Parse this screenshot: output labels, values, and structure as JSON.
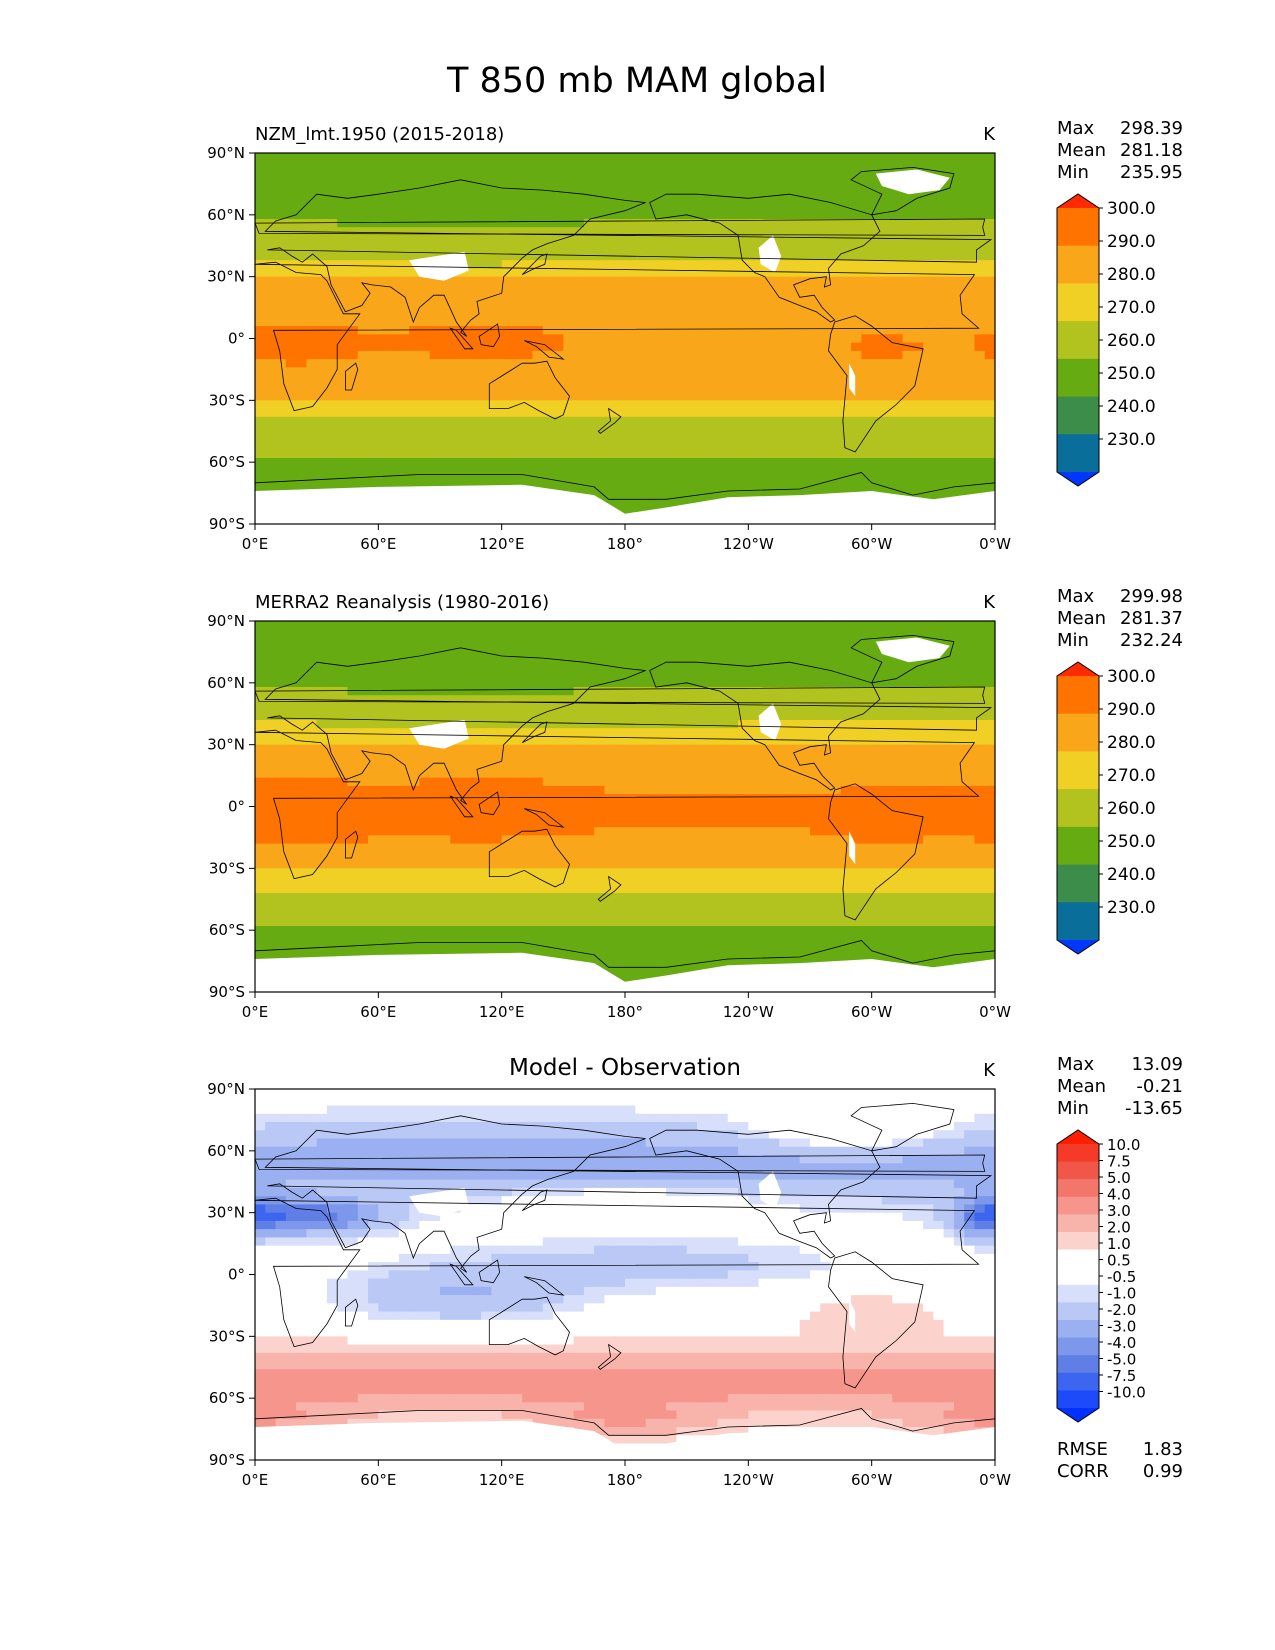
{
  "title": "T 850 mb MAM global",
  "units": "K",
  "colors": {
    "warm": [
      "#ff2a00",
      "#ff7300",
      "#faa61a",
      "#f0d024",
      "#b2c21e",
      "#66ab11",
      "#3c8c4a",
      "#0a6e9a",
      "#0037ff"
    ],
    "diff": [
      "#ff1e00",
      "#f53a2a",
      "#f05748",
      "#f2766a",
      "#f5958c",
      "#f8b3ab",
      "#fbd3cc",
      "#ffffff",
      "#ffffff",
      "#d7dffa",
      "#b9c8f5",
      "#9bb0f0",
      "#7d97eb",
      "#5f7fe6",
      "#3c66ef",
      "#1e4bfa",
      "#0032ff"
    ],
    "land_outline": "#000000",
    "missing": "#ffffff"
  },
  "chart_data": [
    {
      "type": "heatmap",
      "title": "NZM_lmt.1950 (2015-2018)",
      "units": "K",
      "stats": {
        "max_label": "Max",
        "max": "298.39",
        "mean_label": "Mean",
        "mean": "281.18",
        "min_label": "Min",
        "min": "235.95"
      },
      "xlim": [
        0,
        360
      ],
      "ylim": [
        -90,
        90
      ],
      "x_ticks": [
        "0°E",
        "60°E",
        "120°E",
        "180°",
        "120°W",
        "60°W",
        "0°W"
      ],
      "y_ticks": [
        "90°N",
        "60°N",
        "30°N",
        "0°",
        "30°S",
        "60°S",
        "90°S"
      ],
      "colorbar_labels": [
        "300.0",
        "290.0",
        "280.0",
        "270.0",
        "260.0",
        "250.0",
        "240.0",
        "230.0"
      ],
      "field": {
        "equator_core": 288,
        "equator_base": 282,
        "tropic_lat": 30,
        "midlat_30": 275,
        "midlat_60": 258,
        "pole": 252,
        "antarctic": 256
      }
    },
    {
      "type": "heatmap",
      "title": "MERRA2 Reanalysis (1980-2016)",
      "units": "K",
      "stats": {
        "max_label": "Max",
        "max": "299.98",
        "mean_label": "Mean",
        "mean": "281.37",
        "min_label": "Min",
        "min": "232.24"
      },
      "xlim": [
        0,
        360
      ],
      "ylim": [
        -90,
        90
      ],
      "x_ticks": [
        "0°E",
        "60°E",
        "120°E",
        "180°",
        "120°W",
        "60°W",
        "0°W"
      ],
      "y_ticks": [
        "90°N",
        "60°N",
        "30°N",
        "0°",
        "30°S",
        "60°S",
        "90°S"
      ],
      "colorbar_labels": [
        "300.0",
        "290.0",
        "280.0",
        "270.0",
        "260.0",
        "250.0",
        "240.0",
        "230.0"
      ],
      "field": {
        "equator_core": 291,
        "equator_base": 285,
        "tropic_lat": 28,
        "midlat_30": 276,
        "midlat_60": 258,
        "pole": 252,
        "antarctic": 255
      }
    },
    {
      "type": "heatmap",
      "title": "Model - Observation",
      "units": "K",
      "stats": {
        "max_label": "Max",
        "max": "13.09",
        "mean_label": "Mean",
        "mean": "-0.21",
        "min_label": "Min",
        "min": "-13.65"
      },
      "xlim": [
        0,
        360
      ],
      "ylim": [
        -90,
        90
      ],
      "x_ticks": [
        "0°E",
        "60°E",
        "120°E",
        "180°",
        "120°W",
        "60°W",
        "0°W"
      ],
      "y_ticks": [
        "90°N",
        "60°N",
        "30°N",
        "0°",
        "30°S",
        "60°S",
        "90°S"
      ],
      "colorbar_labels": [
        "10.0",
        "7.5",
        "5.0",
        "4.0",
        "3.0",
        "2.0",
        "1.0",
        "0.5",
        "-0.5",
        "-1.0",
        "-2.0",
        "-3.0",
        "-4.0",
        "-5.0",
        "-7.5",
        "-10.0"
      ],
      "footer_stats": {
        "rmse_label": "RMSE",
        "rmse": "1.83",
        "corr_label": "CORR",
        "corr": "0.99"
      }
    }
  ]
}
